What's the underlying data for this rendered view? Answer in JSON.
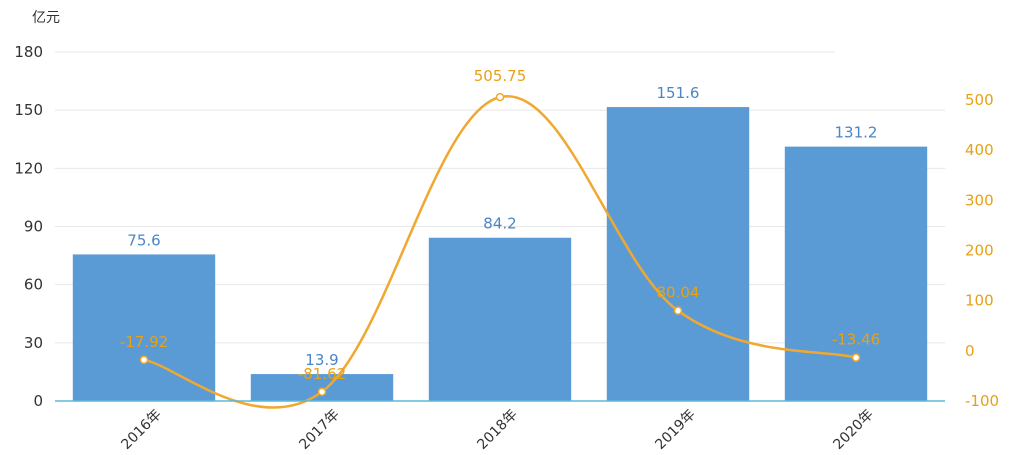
{
  "chart_data": {
    "type": "bar",
    "categories": [
      "2016年",
      "2017年",
      "2018年",
      "2019年",
      "2020年"
    ],
    "ylabel": "亿元",
    "ylim": [
      0,
      180
    ],
    "yticks": [
      0,
      30,
      60,
      90,
      120,
      150,
      180
    ],
    "y2lim": [
      -100,
      500
    ],
    "y2ticks": [
      -100,
      0,
      100,
      200,
      300,
      400,
      500
    ],
    "grid": true,
    "series": [
      {
        "type": "bar",
        "axis": "left",
        "values": [
          75.6,
          13.9,
          84.2,
          151.6,
          131.2
        ],
        "labels": [
          "75.6",
          "13.9",
          "84.2",
          "151.6",
          "131.2"
        ]
      },
      {
        "type": "line",
        "axis": "right",
        "values": [
          -17.92,
          -81.62,
          505.75,
          80.04,
          -13.46
        ],
        "labels": [
          "-17.92",
          "-81.62",
          "505.75",
          "80.04",
          "-13.46"
        ]
      }
    ],
    "colors": {
      "bar": "#5b9bd5",
      "bar_label": "#4a86c5",
      "line": "#f0a830",
      "right_axis": "#e6a118",
      "grid": "#e8e8e8",
      "baseline": "#5bb8d8"
    }
  }
}
